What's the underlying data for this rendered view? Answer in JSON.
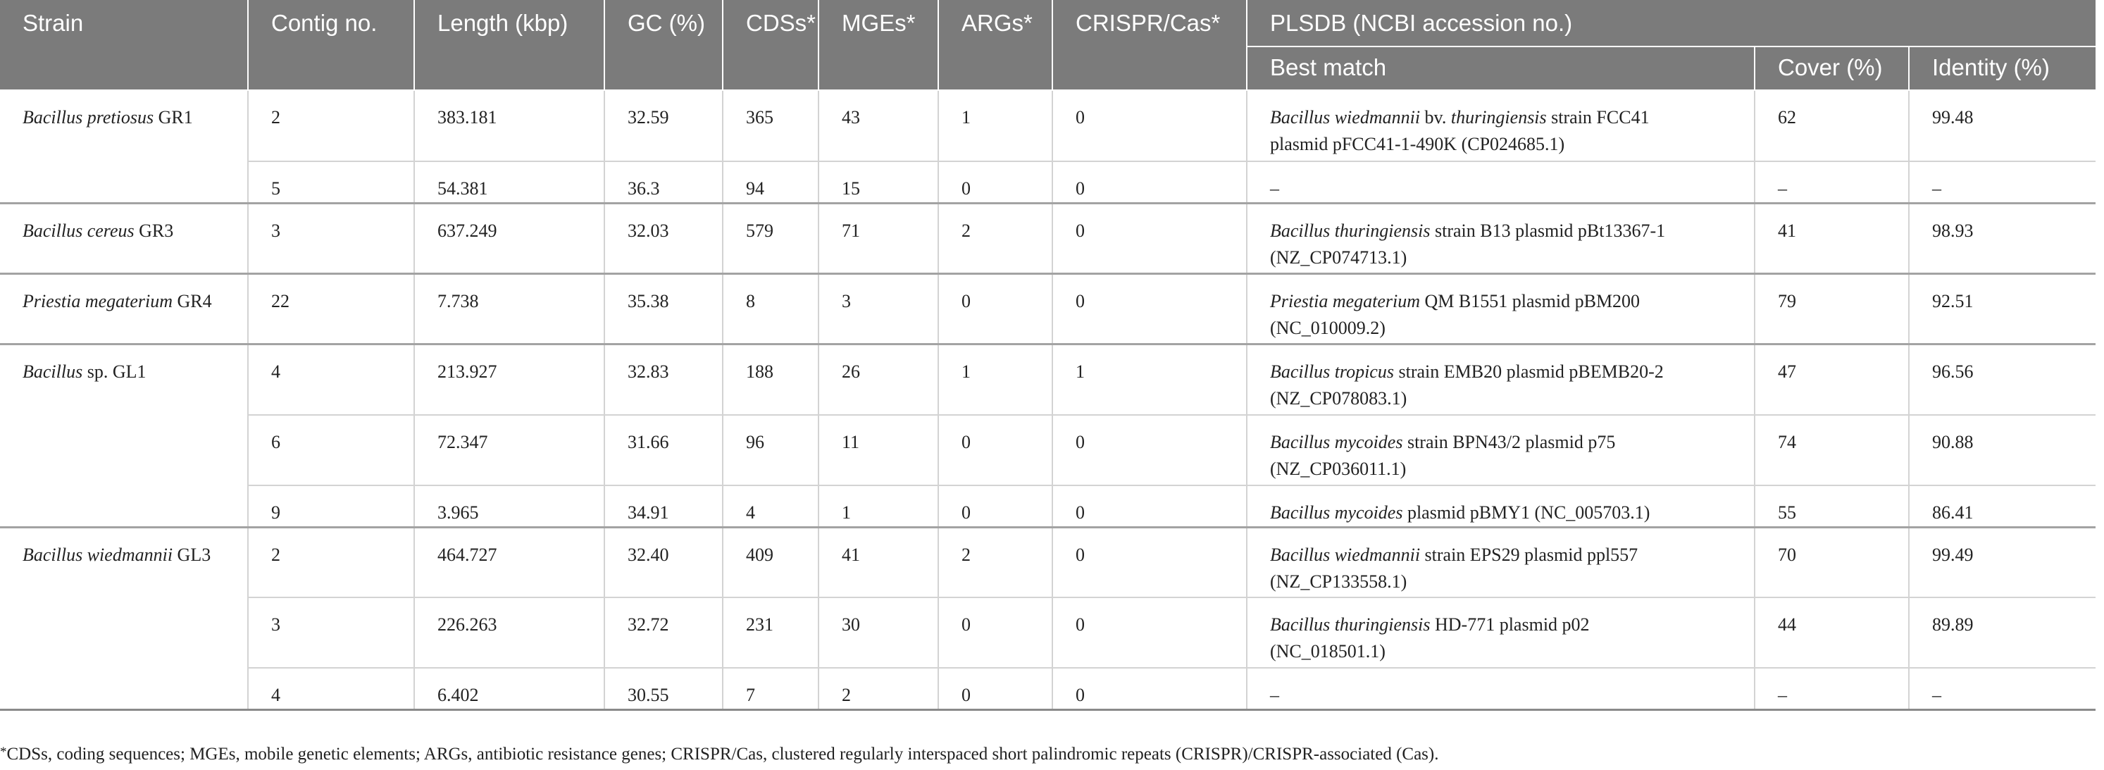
{
  "headers": {
    "strain": "Strain",
    "contig": "Contig no.",
    "length": "Length (kbp)",
    "gc": "GC (%)",
    "cdss": "CDSs*",
    "mges": "MGEs*",
    "args": "ARGs*",
    "crispr": "CRISPR/Cas*",
    "plsdb": "PLSDB (NCBI accession no.)",
    "best_match": "Best match",
    "cover": "Cover (%)",
    "identity": "Identity (%)"
  },
  "rows": [
    {
      "strain_it": "Bacillus pretiosus",
      "strain_rest": " GR1",
      "contig": "2",
      "length": "383.181",
      "gc": "32.59",
      "cdss": "365",
      "mges": "43",
      "args": "1",
      "crispr": "0",
      "match_it": "Bacillus wiedmannii",
      "match_mid": " bv. ",
      "match_it2": "thuringiensis",
      "match_rest": " strain FCC41",
      "match_line2": "plasmid pFCC41-1-490K (CP024685.1)",
      "cover": "62",
      "identity": "99.48"
    },
    {
      "strain_it": "",
      "strain_rest": "",
      "contig": "5",
      "length": "54.381",
      "gc": "36.3",
      "cdss": "94",
      "mges": "15",
      "args": "0",
      "crispr": "0",
      "match_it": "",
      "match_mid": "",
      "match_it2": "",
      "match_rest": "–",
      "match_line2": "",
      "cover": "–",
      "identity": "–"
    },
    {
      "strain_it": "Bacillus cereus",
      "strain_rest": " GR3",
      "contig": "3",
      "length": "637.249",
      "gc": "32.03",
      "cdss": "579",
      "mges": "71",
      "args": "2",
      "crispr": "0",
      "match_it": "Bacillus thuringiensis",
      "match_mid": "",
      "match_it2": "",
      "match_rest": " strain B13 plasmid pBt13367-1",
      "match_line2": "(NZ_CP074713.1)",
      "cover": "41",
      "identity": "98.93"
    },
    {
      "strain_it": "Priestia megaterium",
      "strain_rest": " GR4",
      "contig": "22",
      "length": "7.738",
      "gc": "35.38",
      "cdss": "8",
      "mges": "3",
      "args": "0",
      "crispr": "0",
      "match_it": "Priestia megaterium",
      "match_mid": "",
      "match_it2": "",
      "match_rest": " QM B1551 plasmid pBM200",
      "match_line2": "(NC_010009.2)",
      "cover": "79",
      "identity": "92.51"
    },
    {
      "strain_it": "Bacillus",
      "strain_rest": " sp. GL1",
      "contig": "4",
      "length": "213.927",
      "gc": "32.83",
      "cdss": "188",
      "mges": "26",
      "args": "1",
      "crispr": "1",
      "match_it": "Bacillus tropicus",
      "match_mid": "",
      "match_it2": "",
      "match_rest": " strain EMB20 plasmid pBEMB20-2",
      "match_line2": "(NZ_CP078083.1)",
      "cover": "47",
      "identity": "96.56"
    },
    {
      "strain_it": "",
      "strain_rest": "",
      "contig": "6",
      "length": "72.347",
      "gc": "31.66",
      "cdss": "96",
      "mges": "11",
      "args": "0",
      "crispr": "0",
      "match_it": "Bacillus mycoides",
      "match_mid": "",
      "match_it2": "",
      "match_rest": " strain BPN43/2 plasmid p75",
      "match_line2": "(NZ_CP036011.1)",
      "cover": "74",
      "identity": "90.88"
    },
    {
      "strain_it": "",
      "strain_rest": "",
      "contig": "9",
      "length": "3.965",
      "gc": "34.91",
      "cdss": "4",
      "mges": "1",
      "args": "0",
      "crispr": "0",
      "match_it": "Bacillus mycoides",
      "match_mid": "",
      "match_it2": "",
      "match_rest": " plasmid pBMY1 (NC_005703.1)",
      "match_line2": "",
      "cover": "55",
      "identity": "86.41"
    },
    {
      "strain_it": "Bacillus wiedmannii",
      "strain_rest": " GL3",
      "contig": "2",
      "length": "464.727",
      "gc": "32.40",
      "cdss": "409",
      "mges": "41",
      "args": "2",
      "crispr": "0",
      "match_it": "Bacillus wiedmannii",
      "match_mid": "",
      "match_it2": "",
      "match_rest": " strain EPS29 plasmid ppl557",
      "match_line2": "(NZ_CP133558.1)",
      "cover": "70",
      "identity": "99.49"
    },
    {
      "strain_it": "",
      "strain_rest": "",
      "contig": "3",
      "length": "226.263",
      "gc": "32.72",
      "cdss": "231",
      "mges": "30",
      "args": "0",
      "crispr": "0",
      "match_it": "Bacillus thuringiensis",
      "match_mid": "",
      "match_it2": "",
      "match_rest": " HD-771 plasmid p02",
      "match_line2": "(NC_018501.1)",
      "cover": "44",
      "identity": "89.89"
    },
    {
      "strain_it": "",
      "strain_rest": "",
      "contig": "4",
      "length": "6.402",
      "gc": "30.55",
      "cdss": "7",
      "mges": "2",
      "args": "0",
      "crispr": "0",
      "match_it": "",
      "match_mid": "",
      "match_it2": "",
      "match_rest": "–",
      "match_line2": "",
      "cover": "–",
      "identity": "–"
    }
  ],
  "footnote": {
    "star": "*",
    "text": "CDSs, coding sequences; MGEs, mobile genetic elements; ARGs, antibiotic resistance genes; CRISPR/Cas, clustered regularly interspaced short palindromic repeats (CRISPR)/CRISPR-associated (Cas)."
  }
}
